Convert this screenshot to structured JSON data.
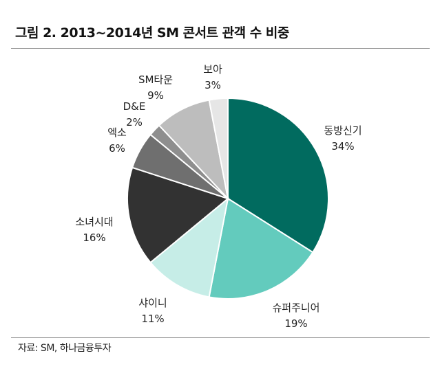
{
  "chart_data": {
    "type": "pie",
    "title": "그림 2. 2013~2014년 SM 콘서트 관객 수 비중",
    "source": "자료: SM, 하나금융투자",
    "start": "12 o'clock, clockwise",
    "slices": [
      {
        "label": "동방신기",
        "value": 34,
        "display": "34%",
        "color": "#016b5f"
      },
      {
        "label": "슈퍼주니어",
        "value": 19,
        "display": "19%",
        "color": "#63cbbd"
      },
      {
        "label": "샤이니",
        "value": 11,
        "display": "11%",
        "color": "#c6ede7"
      },
      {
        "label": "소녀시대",
        "value": 16,
        "display": "16%",
        "color": "#323232"
      },
      {
        "label": "엑소",
        "value": 6,
        "display": "6%",
        "color": "#6f6f6f"
      },
      {
        "label": "D&E",
        "value": 2,
        "display": "2%",
        "color": "#8e8e8e"
      },
      {
        "label": "SM타운",
        "value": 9,
        "display": "9%",
        "color": "#bdbdbd"
      },
      {
        "label": "보아",
        "value": 3,
        "display": "3%",
        "color": "#e6e6e6"
      }
    ]
  }
}
